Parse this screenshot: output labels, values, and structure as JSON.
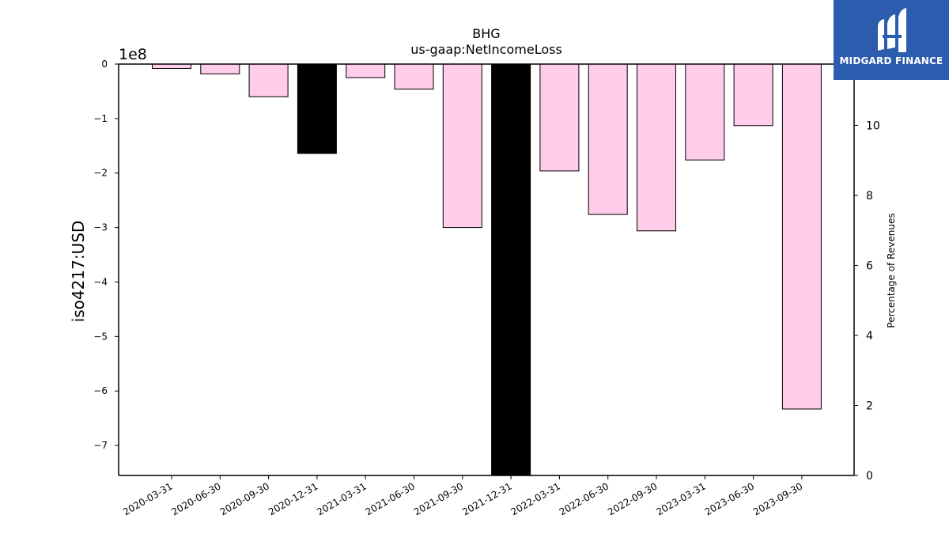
{
  "chart_data": {
    "type": "bar",
    "title": "BHG",
    "subtitle": "us-gaap:NetIncomeLoss",
    "ylabel": "iso4217:USD",
    "y_offset_label": "1e8",
    "y2label": "Percentage of Revenues",
    "categories": [
      "2020-03-31",
      "2020-06-30",
      "2020-09-30",
      "2020-12-31",
      "2021-03-31",
      "2021-06-30",
      "2021-09-30",
      "2021-12-31",
      "2022-03-31",
      "2022-06-30",
      "2022-09-30",
      "2023-03-31",
      "2023-06-30",
      "2023-09-30"
    ],
    "values": [
      -8000000,
      -18000000,
      -60000000,
      -164000000,
      -25000000,
      -46000000,
      -300000000,
      -780000000,
      -196000000,
      -276000000,
      -306000000,
      -176000000,
      -113000000,
      -633000000
    ],
    "highlight": [
      "2020-12-31",
      "2021-12-31"
    ],
    "ylim": [
      -755000000,
      0
    ],
    "yticks": [
      0,
      -100000000,
      -200000000,
      -300000000,
      -400000000,
      -500000000,
      -600000000,
      -700000000
    ],
    "ytick_labels": [
      "0",
      "−1",
      "−2",
      "−3",
      "−4",
      "−5",
      "−6",
      "−7"
    ],
    "y2lim": [
      0,
      11.75
    ],
    "y2ticks": [
      0,
      2,
      4,
      6,
      8,
      10
    ],
    "y2tick_labels": [
      "0",
      "2",
      "4",
      "6",
      "8",
      "10"
    ],
    "colors": {
      "bar": "#ffccea",
      "highlight": "#000000",
      "edge": "#000000"
    },
    "grid": false,
    "legend": "none"
  },
  "logo": {
    "text": "MIDGARD FINANCE",
    "color": "#2c5cae"
  }
}
